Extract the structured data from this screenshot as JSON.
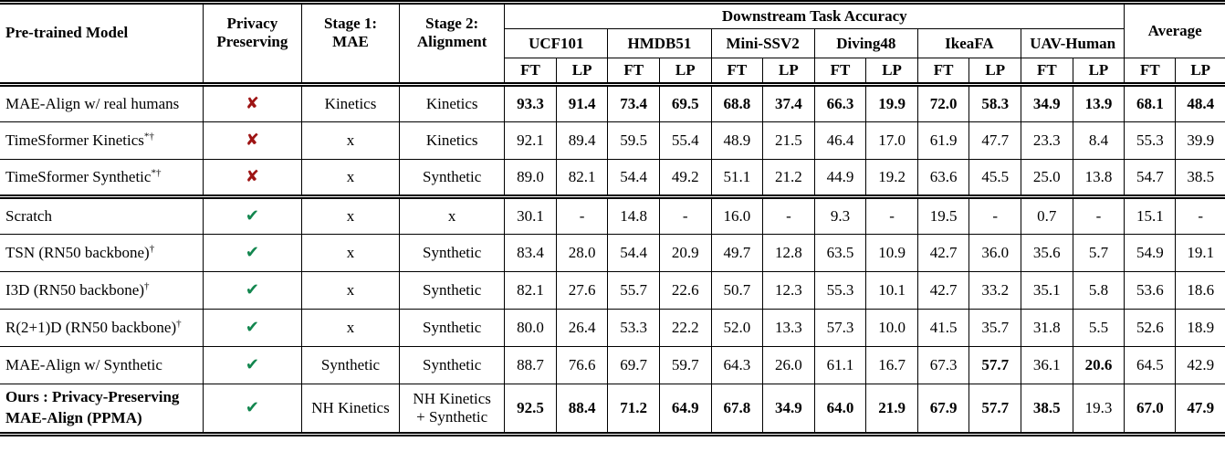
{
  "table": {
    "group_title": "Downstream Task Accuracy",
    "columns": {
      "model": "Pre-trained Model",
      "privacy": [
        "Privacy",
        "Preserving"
      ],
      "stage1": [
        "Stage 1:",
        "MAE"
      ],
      "stage2": [
        "Stage 2:",
        "Alignment"
      ],
      "datasets": [
        "UCF101",
        "HMDB51",
        "Mini-SSV2",
        "Diving48",
        "IkeaFA",
        "UAV-Human"
      ],
      "average": "Average",
      "metrics": [
        "FT",
        "LP"
      ]
    },
    "icons": {
      "check": "✔",
      "cross": "✘"
    },
    "colors": {
      "check": "#12864e",
      "cross": "#9e1414"
    },
    "rows": [
      {
        "name": [
          "MAE-Align w/ real humans"
        ],
        "sup": "",
        "bold_name": false,
        "privacy": "no",
        "stage1": "Kinetics",
        "stage2": [
          "Kinetics"
        ],
        "values": [
          "93.3",
          "91.4",
          "73.4",
          "69.5",
          "68.8",
          "37.4",
          "66.3",
          "19.9",
          "72.0",
          "58.3",
          "34.9",
          "13.9",
          "68.1",
          "48.4"
        ],
        "bold": [
          0,
          1,
          2,
          3,
          4,
          5,
          6,
          7,
          8,
          9,
          10,
          11,
          12,
          13
        ],
        "rule": "single",
        "tall": false
      },
      {
        "name": [
          "TimeSformer Kinetics"
        ],
        "sup": "*†",
        "bold_name": false,
        "privacy": "no",
        "stage1": "x",
        "stage2": [
          "Kinetics"
        ],
        "values": [
          "92.1",
          "89.4",
          "59.5",
          "55.4",
          "48.9",
          "21.5",
          "46.4",
          "17.0",
          "61.9",
          "47.7",
          "23.3",
          "8.4",
          "55.3",
          "39.9"
        ],
        "bold": [],
        "rule": "single",
        "tall": false
      },
      {
        "name": [
          "TimeSformer Synthetic"
        ],
        "sup": "*†",
        "bold_name": false,
        "privacy": "no",
        "stage1": "x",
        "stage2": [
          "Synthetic"
        ],
        "values": [
          "89.0",
          "82.1",
          "54.4",
          "49.2",
          "51.1",
          "21.2",
          "44.9",
          "19.2",
          "63.6",
          "45.5",
          "25.0",
          "13.8",
          "54.7",
          "38.5"
        ],
        "bold": [],
        "rule": "double",
        "tall": false
      },
      {
        "name": [
          "Scratch"
        ],
        "sup": "",
        "bold_name": false,
        "privacy": "yes",
        "stage1": "x",
        "stage2": [
          "x"
        ],
        "values": [
          "30.1",
          "-",
          "14.8",
          "-",
          "16.0",
          "-",
          "9.3",
          "-",
          "19.5",
          "-",
          "0.7",
          "-",
          "15.1",
          "-"
        ],
        "bold": [],
        "rule": "single",
        "tall": false
      },
      {
        "name": [
          "TSN (RN50 backbone)"
        ],
        "sup": "†",
        "bold_name": false,
        "privacy": "yes",
        "stage1": "x",
        "stage2": [
          "Synthetic"
        ],
        "values": [
          "83.4",
          "28.0",
          "54.4",
          "20.9",
          "49.7",
          "12.8",
          "63.5",
          "10.9",
          "42.7",
          "36.0",
          "35.6",
          "5.7",
          "54.9",
          "19.1"
        ],
        "bold": [],
        "rule": "single",
        "tall": false
      },
      {
        "name": [
          "I3D (RN50 backbone)"
        ],
        "sup": "†",
        "bold_name": false,
        "privacy": "yes",
        "stage1": "x",
        "stage2": [
          "Synthetic"
        ],
        "values": [
          "82.1",
          "27.6",
          "55.7",
          "22.6",
          "50.7",
          "12.3",
          "55.3",
          "10.1",
          "42.7",
          "33.2",
          "35.1",
          "5.8",
          "53.6",
          "18.6"
        ],
        "bold": [],
        "rule": "single",
        "tall": false
      },
      {
        "name": [
          "R(2+1)D (RN50 backbone)"
        ],
        "sup": "†",
        "bold_name": false,
        "privacy": "yes",
        "stage1": "x",
        "stage2": [
          "Synthetic"
        ],
        "values": [
          "80.0",
          "26.4",
          "53.3",
          "22.2",
          "52.0",
          "13.3",
          "57.3",
          "10.0",
          "41.5",
          "35.7",
          "31.8",
          "5.5",
          "52.6",
          "18.9"
        ],
        "bold": [],
        "rule": "single",
        "tall": false
      },
      {
        "name": [
          "MAE-Align w/ Synthetic"
        ],
        "sup": "",
        "bold_name": false,
        "privacy": "yes",
        "stage1": "Synthetic",
        "stage2": [
          "Synthetic"
        ],
        "values": [
          "88.7",
          "76.6",
          "69.7",
          "59.7",
          "64.3",
          "26.0",
          "61.1",
          "16.7",
          "67.3",
          "57.7",
          "36.1",
          "20.6",
          "64.5",
          "42.9"
        ],
        "bold": [
          9,
          11
        ],
        "rule": "single",
        "tall": false
      },
      {
        "name": [
          "Ours : Privacy-Preserving",
          "MAE-Align (PPMA)"
        ],
        "sup": "",
        "bold_name": true,
        "privacy": "yes",
        "stage1": "NH Kinetics",
        "stage2": [
          "NH Kinetics",
          "+ Synthetic"
        ],
        "values": [
          "92.5",
          "88.4",
          "71.2",
          "64.9",
          "67.8",
          "34.9",
          "64.0",
          "21.9",
          "67.9",
          "57.7",
          "38.5",
          "19.3",
          "67.0",
          "47.9"
        ],
        "bold": [
          0,
          1,
          2,
          3,
          4,
          5,
          6,
          7,
          8,
          9,
          10,
          12,
          13
        ],
        "rule": "single",
        "tall": true
      }
    ]
  }
}
